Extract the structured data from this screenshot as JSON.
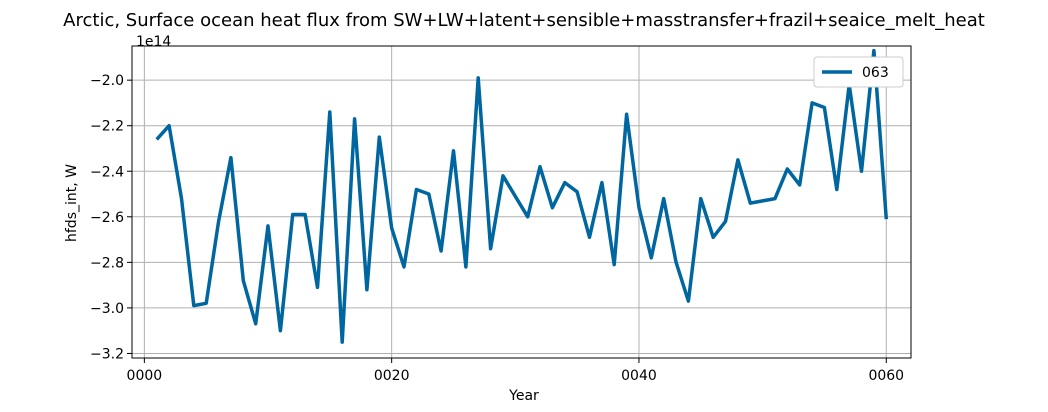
{
  "chart_data": {
    "type": "line",
    "title": "Arctic, Surface ocean heat flux from SW+LW+latent+sensible+masstransfer+frazil+seaice_melt_heat",
    "xlabel": "Year",
    "ylabel": "hfds_int, W",
    "y_offset_label": "1e14",
    "xlim": [
      -1,
      62
    ],
    "ylim": [
      -3.22,
      -1.85
    ],
    "x_ticks": [
      0,
      20,
      40,
      60
    ],
    "x_tick_labels": [
      "0000",
      "0020",
      "0040",
      "0060"
    ],
    "y_ticks": [
      -3.2,
      -3.0,
      -2.8,
      -2.6,
      -2.4,
      -2.2,
      -2.0
    ],
    "y_tick_labels": [
      "−3.2",
      "−3.0",
      "−2.8",
      "−2.6",
      "−2.4",
      "−2.2",
      "−2.0"
    ],
    "grid": true,
    "legend_position": "top-right",
    "series": [
      {
        "name": "063",
        "color": "#0066a0",
        "x": [
          1,
          2,
          3,
          4,
          5,
          6,
          7,
          8,
          9,
          10,
          11,
          12,
          13,
          14,
          15,
          16,
          17,
          18,
          19,
          20,
          21,
          22,
          23,
          24,
          25,
          26,
          27,
          28,
          29,
          30,
          31,
          32,
          33,
          34,
          35,
          36,
          37,
          38,
          39,
          40,
          41,
          42,
          43,
          44,
          45,
          46,
          47,
          48,
          49,
          50,
          51,
          52,
          53,
          54,
          55,
          56,
          57,
          58,
          59,
          60
        ],
        "values": [
          -2.26,
          -2.2,
          -2.52,
          -2.99,
          -2.98,
          -2.62,
          -2.34,
          -2.88,
          -3.07,
          -2.64,
          -3.1,
          -2.59,
          -2.59,
          -2.91,
          -2.14,
          -3.15,
          -2.17,
          -2.92,
          -2.25,
          -2.65,
          -2.82,
          -2.48,
          -2.5,
          -2.75,
          -2.31,
          -2.82,
          -1.99,
          -2.74,
          -2.42,
          -2.51,
          -2.6,
          -2.38,
          -2.56,
          -2.45,
          -2.49,
          -2.69,
          -2.45,
          -2.81,
          -2.15,
          -2.56,
          -2.78,
          -2.52,
          -2.8,
          -2.97,
          -2.52,
          -2.69,
          -2.62,
          -2.35,
          -2.54,
          -2.53,
          -2.52,
          -2.39,
          -2.46,
          -2.1,
          -2.12,
          -2.48,
          -2.02,
          -2.4,
          -1.87,
          -2.61
        ]
      }
    ]
  }
}
